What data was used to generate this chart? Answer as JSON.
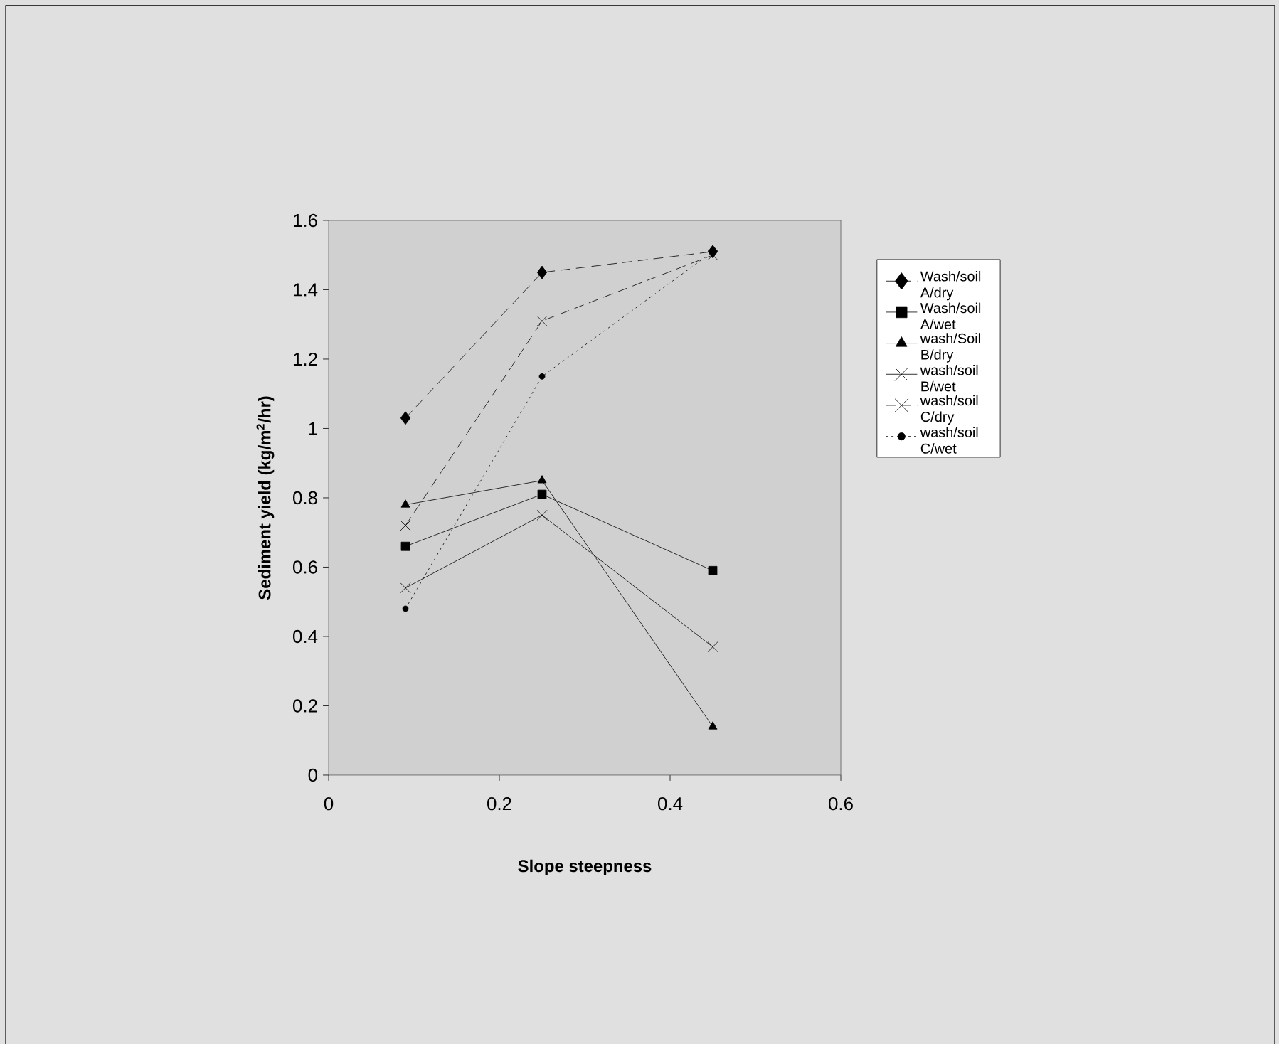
{
  "chart_data": {
    "type": "line",
    "xlabel": "Slope steepness",
    "ylabel": "Sediment yield  (kg/m$^{2}$/hr)",
    "x": [
      0.09,
      0.25,
      0.45
    ],
    "series": [
      {
        "name": "Wash/soil A/dry",
        "color": "#000000",
        "marker": "diamond",
        "line_style": "dashed",
        "values": [
          1.03,
          1.45,
          1.51
        ]
      },
      {
        "name": "Wash/soil A/wet",
        "color": "#000000",
        "marker": "square",
        "line_style": "solid",
        "values": [
          0.66,
          0.81,
          0.59
        ]
      },
      {
        "name": "wash/Soil B/dry",
        "color": "#000000",
        "marker": "triangle",
        "line_style": "solid",
        "values": [
          0.78,
          0.85,
          0.14
        ]
      },
      {
        "name": "wash/soil B/wet",
        "color": "#000000",
        "marker": "cross",
        "line_style": "solid",
        "values": [
          0.54,
          0.75,
          0.37
        ]
      },
      {
        "name": "wash/soil C/dry",
        "color": "#000000",
        "marker": "cross",
        "line_style": "dashed",
        "values": [
          0.72,
          1.31,
          1.5
        ]
      },
      {
        "name": "wash/soil C/wet",
        "color": "#000000",
        "marker": "circle",
        "line_style": "dotted",
        "values": [
          0.48,
          1.15,
          1.51
        ]
      }
    ],
    "xlim": [
      0,
      0.6
    ],
    "xticks": [
      0,
      0.2,
      0.4,
      0.6
    ],
    "ylim": [
      0,
      1.6
    ],
    "yticks": [
      0,
      0.2,
      0.4,
      0.6,
      0.8,
      1,
      1.2,
      1.4,
      1.6
    ],
    "grid": false,
    "legend": "right"
  }
}
